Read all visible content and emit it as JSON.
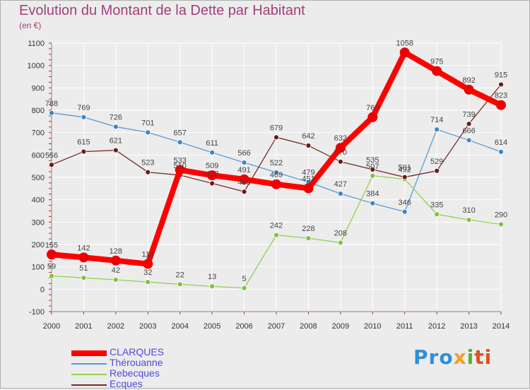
{
  "title": "Evolution du Montant de la Dette par Habitant",
  "unit": "(en €)",
  "logo": {
    "p1": "Pro",
    "p2": "x",
    "p3": "i",
    "p4": "ti"
  },
  "colors": {
    "CLARQUES": "#ff0000",
    "Thérouanne": "#5b9bd5",
    "Rebecques": "#92d050",
    "Ecques": "#7b2a2a"
  },
  "chart_data": {
    "type": "line",
    "title": "Evolution du Montant de la Dette par Habitant",
    "ylabel": "(en €)",
    "xlabel": "",
    "x": [
      2000,
      2001,
      2002,
      2003,
      2004,
      2005,
      2006,
      2007,
      2008,
      2009,
      2010,
      2011,
      2012,
      2013,
      2014
    ],
    "ylim": [
      -100,
      1100
    ],
    "yticks": [
      -100,
      0,
      100,
      200,
      300,
      400,
      500,
      600,
      700,
      800,
      900,
      1000,
      1100
    ],
    "grid": true,
    "legend_position": "bottom-left",
    "series": [
      {
        "name": "CLARQUES",
        "values": [
          155,
          142,
          128,
          113,
          533,
          509,
          491,
          469,
          451,
          632,
          769,
          1058,
          975,
          892,
          823
        ]
      },
      {
        "name": "Thérouanne",
        "values": [
          788,
          769,
          726,
          701,
          657,
          611,
          566,
          522,
          479,
          427,
          384,
          346,
          714,
          666,
          614
        ]
      },
      {
        "name": "Rebecques",
        "values": [
          59,
          51,
          42,
          32,
          22,
          13,
          5,
          242,
          228,
          208,
          507,
          492,
          335,
          310,
          290
        ]
      },
      {
        "name": "Ecques",
        "values": [
          556,
          615,
          621,
          523,
          510,
          473,
          436,
          679,
          642,
          570,
          535,
          501,
          529,
          739,
          915
        ]
      }
    ]
  }
}
